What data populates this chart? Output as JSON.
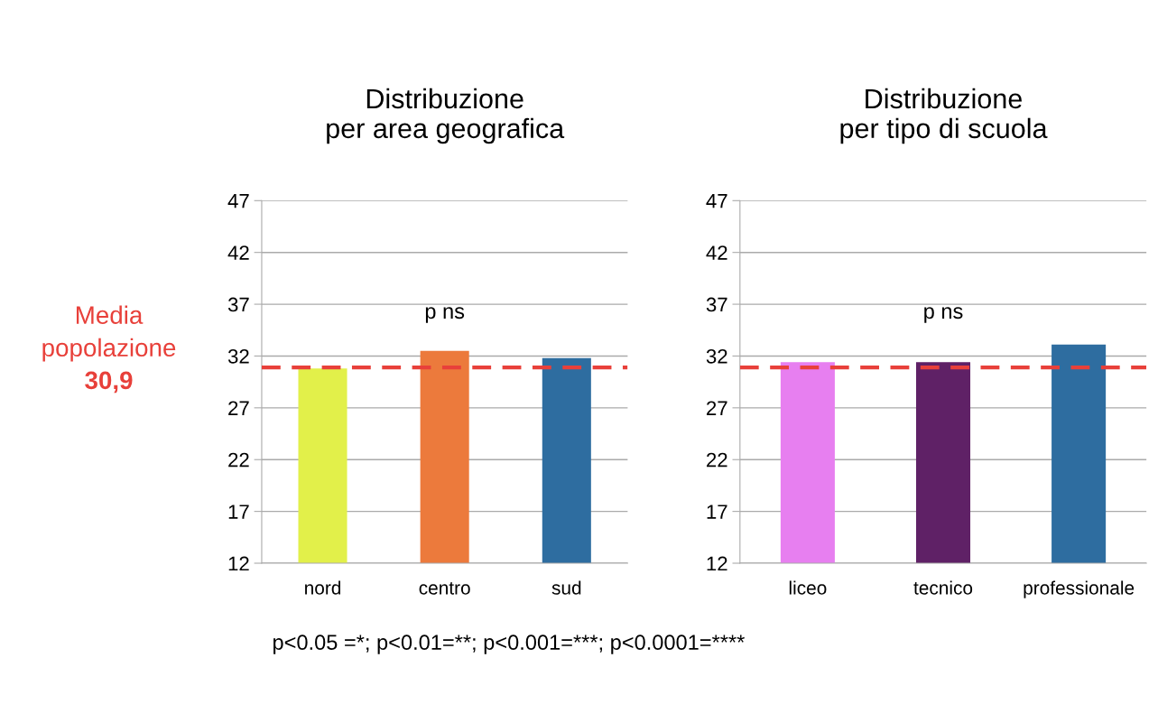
{
  "chart_data": [
    {
      "type": "bar",
      "title": "Distribuzione\nper area geografica",
      "categories": [
        "nord",
        "centro",
        "sud"
      ],
      "values": [
        30.8,
        32.5,
        31.8
      ],
      "colors": [
        "#e2f04a",
        "#ec7a3c",
        "#2e6da0"
      ],
      "ylim": [
        12,
        47
      ],
      "yticks": [
        12,
        17,
        22,
        27,
        32,
        37,
        42,
        47
      ],
      "grid": "y",
      "ref_lines": [
        {
          "axis": "y",
          "value": 30.9,
          "label": "Media\npopolazione\n30,9",
          "color": "#e8403a",
          "line_style": "dashed"
        }
      ],
      "annotations": [
        "p ns",
        "p<0.05 =*; p<0.01=**; p<0.001=***; p<0.0001=****"
      ]
    },
    {
      "type": "bar",
      "title": "Distribuzione\nper tipo di scuola",
      "categories": [
        "liceo",
        "tecnico",
        "professionale"
      ],
      "values": [
        31.4,
        31.4,
        33.1
      ],
      "colors": [
        "#e77ff0",
        "#5f2166",
        "#2e6da0"
      ],
      "ylim": [
        12,
        47
      ],
      "yticks": [
        12,
        17,
        22,
        27,
        32,
        37,
        42,
        47
      ],
      "grid": "y",
      "ref_lines": [
        {
          "axis": "y",
          "value": 30.9,
          "color": "#e8403a",
          "line_style": "dashed"
        }
      ],
      "annotations": [
        "p ns"
      ]
    }
  ]
}
